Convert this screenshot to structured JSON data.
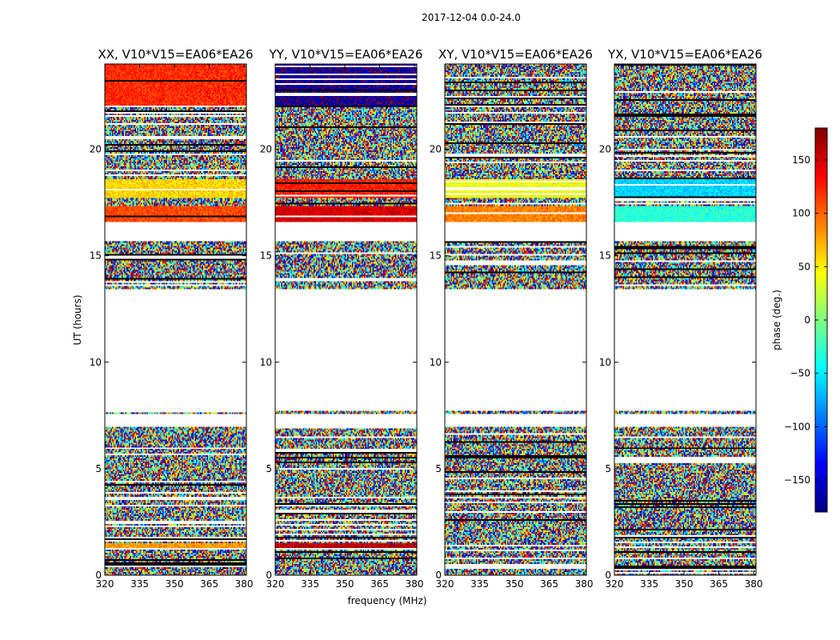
{
  "figure": {
    "suptitle": "2017-12-04 0.0-24.0"
  },
  "chart_data": {
    "type": "heatmap",
    "xlabel": "frequency (MHz)",
    "ylabel": "UT (hours)",
    "xlim": [
      320,
      381
    ],
    "ylim": [
      0,
      24
    ],
    "x_ticks": [
      320,
      335,
      350,
      365,
      380
    ],
    "y_ticks": [
      0,
      5,
      10,
      15,
      20
    ],
    "colorbar": {
      "label": "phase (deg.)",
      "range": [
        -180,
        180
      ],
      "ticks": [
        150,
        100,
        50,
        0,
        -50,
        -100,
        -150
      ],
      "colormap": "jet",
      "colors": [
        "#00007f",
        "#0000ff",
        "#007fff",
        "#00ffff",
        "#7fff7f",
        "#ffff00",
        "#ff7f00",
        "#ff0000",
        "#7f0000"
      ]
    },
    "data_gaps_hours": [
      [
        7.0,
        7.6
      ],
      [
        7.75,
        13.45
      ],
      [
        15.65,
        16.55
      ]
    ],
    "panels": [
      {
        "title": "XX, V10*V15=EA06*EA26",
        "coherent_bands": [
          {
            "ut": [
              17.7,
              18.6
            ],
            "phase_deg": 60
          },
          {
            "ut": [
              16.6,
              17.3
            ],
            "phase_deg": 110
          },
          {
            "ut": [
              22.0,
              24.0
            ],
            "phase_deg": 120
          },
          {
            "ut": [
              1.2,
              1.5
            ],
            "phase_deg": 80
          }
        ]
      },
      {
        "title": "YY, V10*V15=EA06*EA26",
        "coherent_bands": [
          {
            "ut": [
              17.7,
              18.6
            ],
            "phase_deg": 125
          },
          {
            "ut": [
              16.6,
              17.3
            ],
            "phase_deg": 150
          },
          {
            "ut": [
              22.0,
              24.0
            ],
            "phase_deg": -170
          },
          {
            "ut": [
              1.2,
              1.5
            ],
            "phase_deg": 160
          }
        ]
      },
      {
        "title": "XY, V10*V15=EA06*EA26",
        "coherent_bands": [
          {
            "ut": [
              17.7,
              18.6
            ],
            "phase_deg": 40
          },
          {
            "ut": [
              16.6,
              17.3
            ],
            "phase_deg": 90
          }
        ]
      },
      {
        "title": "YX, V10*V15=EA06*EA26",
        "coherent_bands": [
          {
            "ut": [
              17.7,
              18.6
            ],
            "phase_deg": -60
          },
          {
            "ut": [
              16.6,
              17.3
            ],
            "phase_deg": -30
          }
        ]
      }
    ]
  }
}
